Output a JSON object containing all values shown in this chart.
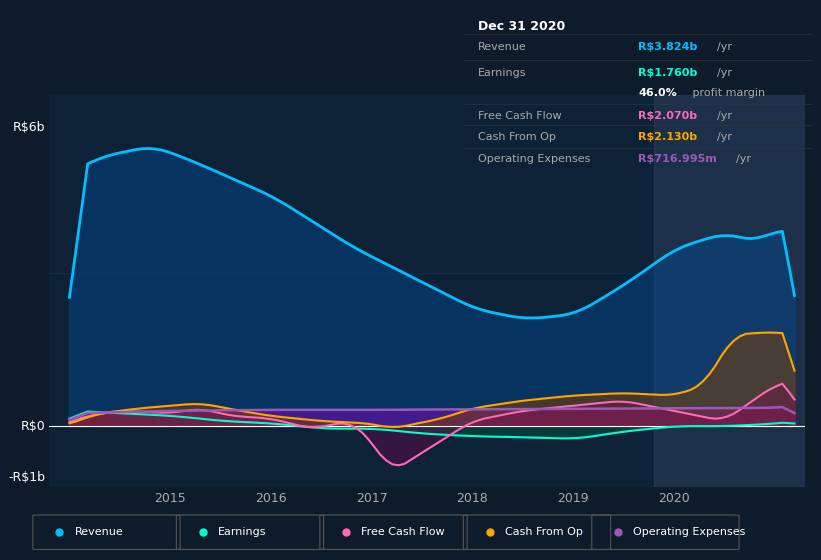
{
  "bg_color": "#0d1b2a",
  "plot_bg_color": "#0d2137",
  "grid_color": "#1a3a5c",
  "ylim": [
    -1.2,
    6.5
  ],
  "xlim_start": 2013.8,
  "xlim_end": 2021.3,
  "xtick_labels": [
    "2015",
    "2016",
    "2017",
    "2018",
    "2019",
    "2020"
  ],
  "xtick_positions": [
    2015,
    2016,
    2017,
    2018,
    2019,
    2020
  ],
  "revenue_color": "#00bfff",
  "earnings_color": "#00ffcc",
  "fcf_color": "#ff69b4",
  "cashfromop_color": "#ffa500",
  "opex_color": "#9b59b6",
  "legend_items": [
    "Revenue",
    "Earnings",
    "Free Cash Flow",
    "Cash From Op",
    "Operating Expenses"
  ],
  "legend_colors": [
    "#00bfff",
    "#00ffcc",
    "#ff69b4",
    "#ffa500",
    "#9b59b6"
  ],
  "info_date": "Dec 31 2020",
  "shaded_region_start": 2019.8,
  "shaded_region_end": 2021.3
}
